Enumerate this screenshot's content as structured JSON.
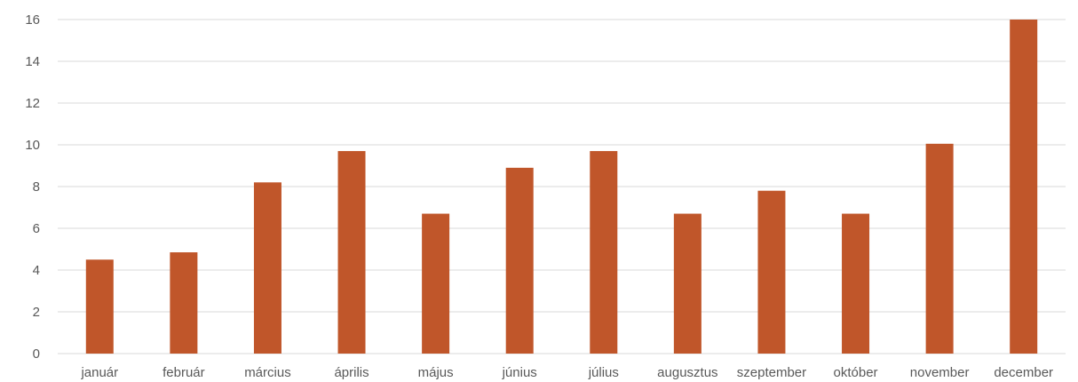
{
  "chart_data": {
    "type": "bar",
    "categories": [
      "január",
      "február",
      "március",
      "április",
      "május",
      "június",
      "július",
      "augusztus",
      "szeptember",
      "október",
      "november",
      "december"
    ],
    "values": [
      4.5,
      4.85,
      8.2,
      9.7,
      6.7,
      8.9,
      9.7,
      6.7,
      7.8,
      6.7,
      10.05,
      16.0
    ],
    "ylim": [
      0,
      16
    ],
    "yticks": [
      0,
      2,
      4,
      6,
      8,
      10,
      12,
      14,
      16
    ],
    "ytick_labels": [
      "0",
      "2",
      "4",
      "6",
      "8",
      "10",
      "12",
      "14",
      "16"
    ],
    "title": "",
    "xlabel": "",
    "ylabel": "",
    "grid": true,
    "legend": "none",
    "bar_color": "#c0562a",
    "grid_color": "#d9d9d9",
    "text_color": "#595959"
  }
}
